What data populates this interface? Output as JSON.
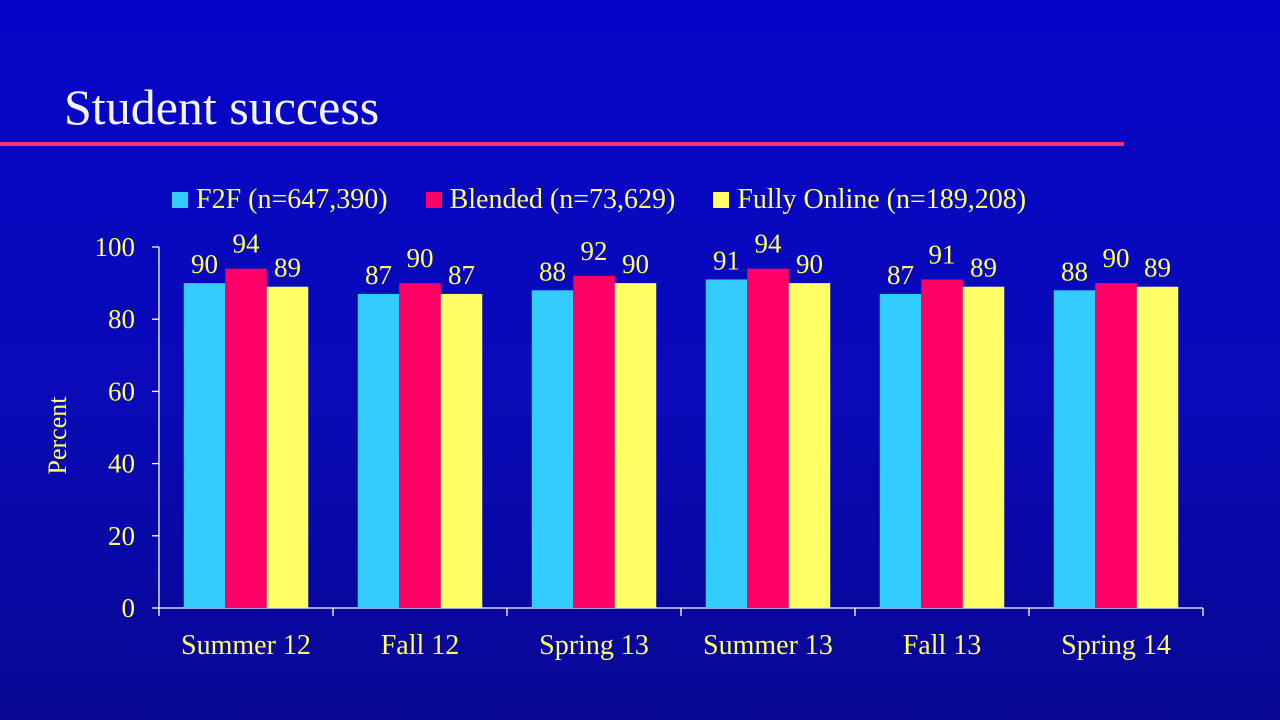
{
  "slide": {
    "title": "Student success"
  },
  "colors": {
    "background": "#0000c0",
    "title_text": "#f4f4ff",
    "rule": "#ff2d7a",
    "label_text": "#ffff66",
    "axis": "#ffffff"
  },
  "chart_data": {
    "type": "bar",
    "title": "",
    "xlabel": "",
    "ylabel": "Percent",
    "ylim": [
      0,
      100
    ],
    "yticks": [
      0,
      20,
      40,
      60,
      80,
      100
    ],
    "grid": false,
    "legend_position": "top",
    "categories": [
      "Summer 12",
      "Fall 12",
      "Spring 13",
      "Summer 13",
      "Fall 13",
      "Spring 14"
    ],
    "series": [
      {
        "name": "F2F (n=647,390)",
        "color": "#33ccff",
        "values": [
          90,
          87,
          88,
          91,
          87,
          88
        ]
      },
      {
        "name": "Blended (n=73,629)",
        "color": "#ff0066",
        "values": [
          94,
          90,
          92,
          94,
          91,
          90
        ]
      },
      {
        "name": "Fully Online (n=189,208)",
        "color": "#ffff66",
        "values": [
          89,
          87,
          90,
          90,
          89,
          89
        ]
      }
    ]
  }
}
